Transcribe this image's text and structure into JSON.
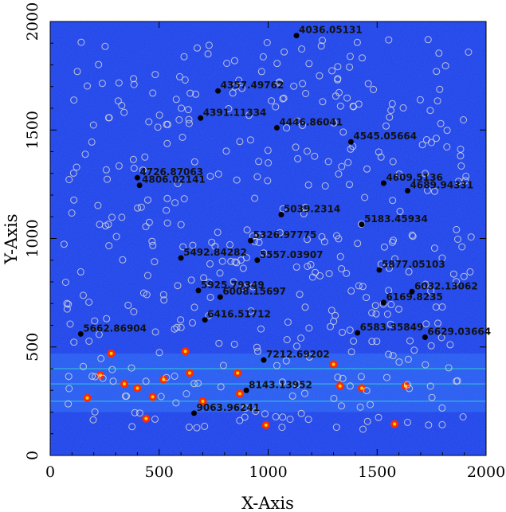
{
  "chart_data": {
    "type": "scatter",
    "title": "",
    "xlabel": "X-Axis",
    "ylabel": "Y-Axis",
    "xlim": [
      0,
      2000
    ],
    "ylim": [
      0,
      2000
    ],
    "x_ticks": [
      0,
      500,
      1000,
      1500,
      2000
    ],
    "y_ticks": [
      0,
      500,
      1000,
      1500,
      2000
    ],
    "colors": {
      "background": "#1c3fe8",
      "marker": "#d8d8d8",
      "label_dot": "#000000",
      "hot_spot": "#ff2a00"
    },
    "labeled_lines": [
      {
        "label": "4036.05131",
        "x": 1130,
        "y": 1935
      },
      {
        "label": "4357.49762",
        "x": 770,
        "y": 1680
      },
      {
        "label": "4391.11334",
        "x": 690,
        "y": 1555
      },
      {
        "label": "4446.86041",
        "x": 1040,
        "y": 1510
      },
      {
        "label": "4545.05664",
        "x": 1380,
        "y": 1445
      },
      {
        "label": "4726.87063",
        "x": 400,
        "y": 1280
      },
      {
        "label": "4806.02141",
        "x": 410,
        "y": 1245
      },
      {
        "label": "4609.5136",
        "x": 1530,
        "y": 1255
      },
      {
        "label": "4689.94331",
        "x": 1640,
        "y": 1220
      },
      {
        "label": "5039.2314",
        "x": 1060,
        "y": 1110
      },
      {
        "label": "5183.45934",
        "x": 1430,
        "y": 1065
      },
      {
        "label": "5326.97775",
        "x": 920,
        "y": 990
      },
      {
        "label": "5492.84282",
        "x": 600,
        "y": 910
      },
      {
        "label": "5557.03907",
        "x": 950,
        "y": 900
      },
      {
        "label": "5877.05103",
        "x": 1510,
        "y": 855
      },
      {
        "label": "5925.79349",
        "x": 680,
        "y": 760
      },
      {
        "label": "6008.15697",
        "x": 780,
        "y": 730
      },
      {
        "label": "6032.13062",
        "x": 1660,
        "y": 755
      },
      {
        "label": "6169.8235",
        "x": 1530,
        "y": 705
      },
      {
        "label": "6416.51712",
        "x": 710,
        "y": 625
      },
      {
        "label": "5662.86904",
        "x": 140,
        "y": 560
      },
      {
        "label": "6583.35849",
        "x": 1410,
        "y": 565
      },
      {
        "label": "6629.03664",
        "x": 1720,
        "y": 545
      },
      {
        "label": "7212.69202",
        "x": 980,
        "y": 440
      },
      {
        "label": "8143.13952",
        "x": 900,
        "y": 300
      },
      {
        "label": "9063.96241",
        "x": 660,
        "y": 195
      }
    ]
  }
}
